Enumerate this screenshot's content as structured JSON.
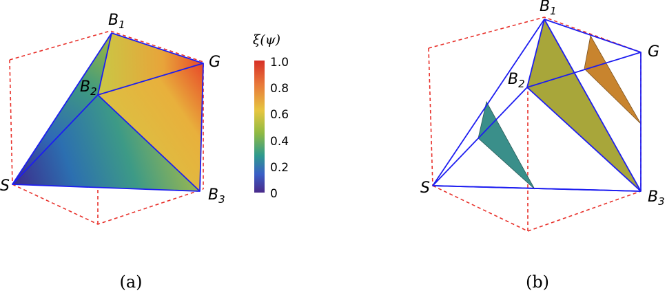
{
  "vertices": {
    "b1": {
      "main": "B",
      "sub": "1"
    },
    "b2": {
      "main": "B",
      "sub": "2"
    },
    "b3": {
      "main": "B",
      "sub": "3"
    },
    "g": "G",
    "s": "S"
  },
  "colorbar": {
    "title": "ξ(ψ)",
    "ticks": [
      "1.0",
      "0.8",
      "0.6",
      "0.4",
      "0.2",
      "0"
    ],
    "colors": [
      "#d73027",
      "#e8783a",
      "#e6c640",
      "#7fb346",
      "#2e9a8e",
      "#3a5fc6",
      "#4a2a8a"
    ]
  },
  "captions": {
    "a": "(a)",
    "b": "(b)"
  },
  "colors": {
    "cube_dashed": "#e8302a",
    "edges": "#1d1df0",
    "slice_teal": "#3a8f8a",
    "slice_olive": "#a8a63a",
    "slice_orange": "#c8842e"
  }
}
